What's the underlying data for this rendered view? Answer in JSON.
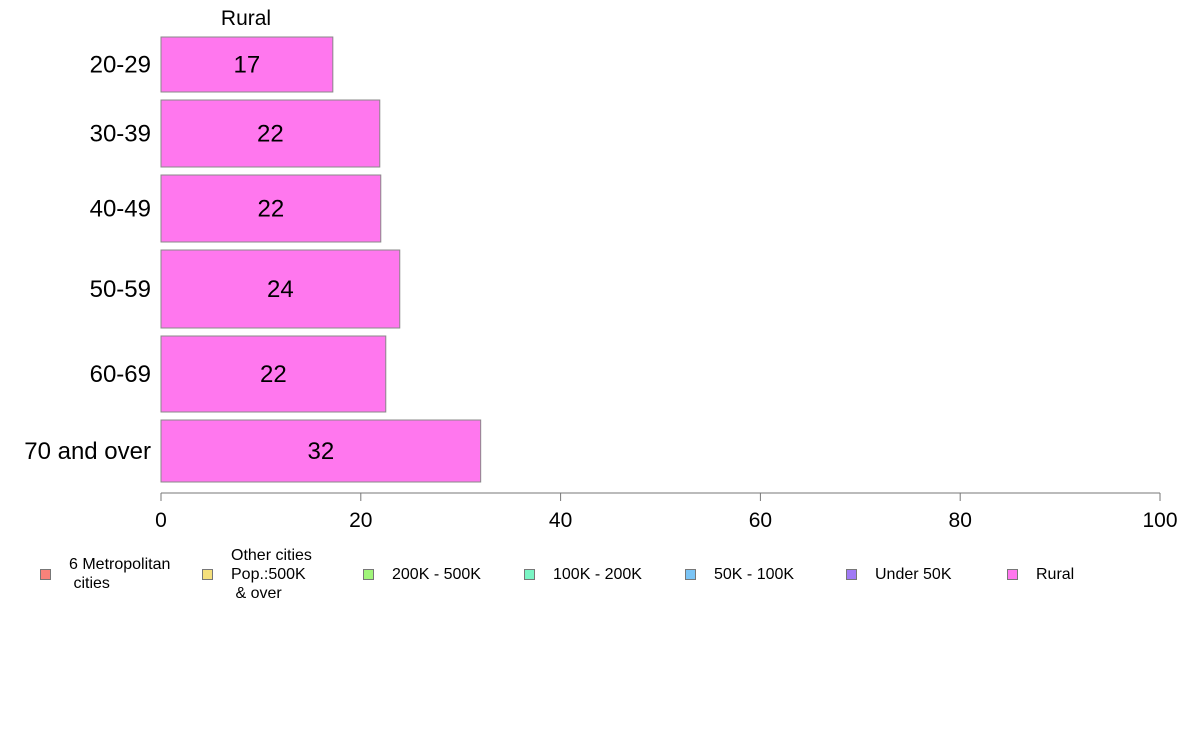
{
  "chart_data": {
    "type": "bar",
    "orientation": "horizontal",
    "title": "Rural",
    "categories": [
      "20-29",
      "30-39",
      "40-49",
      "50-59",
      "60-69",
      "70 and over"
    ],
    "series": [
      {
        "name": "Rural",
        "values": [
          17.2,
          21.9,
          22.0,
          23.9,
          22.5,
          32.0
        ],
        "labels": [
          "17",
          "22",
          "22",
          "24",
          "22",
          "32"
        ]
      }
    ],
    "xlim": [
      0,
      100
    ],
    "xticks": [
      "0",
      "20",
      "40",
      "60",
      "80",
      "100"
    ],
    "xtick_values": [
      0,
      20,
      40,
      60,
      80,
      100
    ],
    "grid": false,
    "bar_color": "#ff77ee",
    "legend_position": "bottom",
    "legend": [
      {
        "label": "6 Metropolitan\n cities",
        "color": "#f8827a"
      },
      {
        "label": "Other cities\nPop.:500K\n & over",
        "color": "#f5e07c"
      },
      {
        "label": "200K - 500K",
        "color": "#a0f57a"
      },
      {
        "label": "100K - 200K",
        "color": "#7af5c4"
      },
      {
        "label": "50K - 100K",
        "color": "#7ac4f5"
      },
      {
        "label": "Under 50K",
        "color": "#a07af5"
      },
      {
        "label": "Rural",
        "color": "#ff77ee"
      }
    ]
  }
}
